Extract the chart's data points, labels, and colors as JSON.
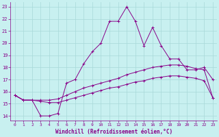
{
  "xlabel": "Windchill (Refroidissement éolien,°C)",
  "background_color": "#c8f0f0",
  "grid_color": "#a8d8d8",
  "line_color": "#880088",
  "x_ticks": [
    0,
    1,
    2,
    3,
    4,
    5,
    6,
    7,
    8,
    9,
    10,
    11,
    12,
    13,
    14,
    15,
    16,
    17,
    18,
    19,
    20,
    21,
    22,
    23
  ],
  "y_ticks": [
    14,
    15,
    16,
    17,
    18,
    19,
    20,
    21,
    22,
    23
  ],
  "ylim": [
    13.6,
    23.4
  ],
  "xlim": [
    -0.5,
    23.5
  ],
  "series1_x": [
    0,
    1,
    2,
    3,
    4,
    5,
    6,
    7,
    8,
    9,
    10,
    11,
    12,
    13,
    14,
    15,
    16,
    17,
    18,
    19,
    20,
    21,
    22,
    23
  ],
  "series1_y": [
    15.7,
    15.3,
    15.3,
    14.0,
    14.0,
    14.2,
    16.7,
    17.0,
    18.3,
    19.3,
    20.0,
    21.8,
    21.8,
    23.0,
    21.8,
    19.8,
    21.3,
    19.8,
    18.7,
    18.7,
    17.8,
    17.8,
    18.0,
    17.0
  ],
  "series2_x": [
    0,
    1,
    2,
    3,
    4,
    5,
    6,
    7,
    8,
    9,
    10,
    11,
    12,
    13,
    14,
    15,
    16,
    17,
    18,
    19,
    20,
    21,
    22,
    23
  ],
  "series2_y": [
    15.7,
    15.3,
    15.3,
    15.3,
    15.3,
    15.4,
    15.7,
    16.0,
    16.3,
    16.5,
    16.7,
    16.9,
    17.1,
    17.4,
    17.6,
    17.8,
    18.0,
    18.1,
    18.2,
    18.2,
    18.1,
    17.9,
    17.8,
    15.5
  ],
  "series3_x": [
    0,
    1,
    2,
    3,
    4,
    5,
    6,
    7,
    8,
    9,
    10,
    11,
    12,
    13,
    14,
    15,
    16,
    17,
    18,
    19,
    20,
    21,
    22,
    23
  ],
  "series3_y": [
    15.7,
    15.3,
    15.3,
    15.2,
    15.1,
    15.1,
    15.3,
    15.5,
    15.7,
    15.9,
    16.1,
    16.3,
    16.4,
    16.6,
    16.8,
    16.9,
    17.1,
    17.2,
    17.3,
    17.3,
    17.2,
    17.1,
    16.9,
    15.5
  ]
}
